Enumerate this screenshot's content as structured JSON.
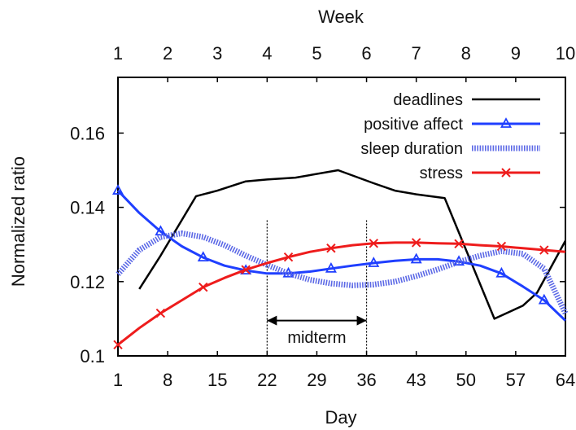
{
  "chart_data": {
    "type": "line",
    "title": "",
    "xlabel": "Day",
    "ylabel": "Normalized ratio",
    "x2label": "Week",
    "xlim": [
      1,
      64
    ],
    "ylim": [
      0.1,
      0.175
    ],
    "x_ticks": [
      1,
      8,
      15,
      22,
      29,
      36,
      43,
      50,
      57,
      64
    ],
    "y_ticks": [
      0.1,
      0.12,
      0.14,
      0.16
    ],
    "y_tick_labels": [
      "0.1",
      "0.12",
      "0.14",
      "0.16"
    ],
    "week_ticks": [
      "1",
      "2",
      "3",
      "4",
      "5",
      "6",
      "7",
      "8",
      "9",
      "10"
    ],
    "grid": false,
    "legend_position": "top-right",
    "series": [
      {
        "name": "deadlines",
        "color": "#000000",
        "style": "solid",
        "marker": "none",
        "x": [
          4,
          7,
          12,
          15,
          19,
          22,
          26,
          32,
          37,
          40,
          43,
          47,
          54,
          58,
          60,
          64
        ],
        "y": [
          0.118,
          0.127,
          0.143,
          0.1445,
          0.147,
          0.1475,
          0.148,
          0.15,
          0.1465,
          0.1445,
          0.1435,
          0.1425,
          0.11,
          0.1135,
          0.117,
          0.131
        ]
      },
      {
        "name": "positive affect",
        "color": "#1f3fff",
        "style": "solid",
        "marker": "triangle",
        "x": [
          1,
          4,
          7,
          10,
          13,
          16,
          19,
          22,
          25,
          28,
          31,
          34,
          37,
          40,
          43,
          46,
          49,
          52,
          55,
          58,
          61,
          64
        ],
        "y": [
          0.1445,
          0.1385,
          0.1335,
          0.1295,
          0.1265,
          0.1243,
          0.123,
          0.1222,
          0.1222,
          0.1227,
          0.1235,
          0.1243,
          0.125,
          0.1256,
          0.126,
          0.126,
          0.1254,
          0.1243,
          0.1222,
          0.1187,
          0.115,
          0.1095
        ]
      },
      {
        "name": "sleep duration",
        "color": "#5b68e6",
        "style": "dotted",
        "marker": "none",
        "x": [
          1,
          4,
          7,
          10,
          13,
          16,
          19,
          22,
          25,
          28,
          31,
          34,
          37,
          40,
          43,
          46,
          49,
          52,
          55,
          58,
          61,
          64
        ],
        "y": [
          0.122,
          0.1285,
          0.132,
          0.133,
          0.132,
          0.1298,
          0.127,
          0.1245,
          0.1222,
          0.1205,
          0.1195,
          0.119,
          0.1192,
          0.12,
          0.1215,
          0.1233,
          0.1253,
          0.127,
          0.1282,
          0.1275,
          0.1235,
          0.1115
        ]
      },
      {
        "name": "stress",
        "color": "#ee1c1c",
        "style": "solid",
        "marker": "cross",
        "x": [
          1,
          4,
          7,
          10,
          13,
          16,
          19,
          22,
          25,
          28,
          31,
          34,
          37,
          40,
          43,
          46,
          49,
          52,
          55,
          58,
          61,
          64
        ],
        "y": [
          0.103,
          0.1075,
          0.1115,
          0.115,
          0.1185,
          0.121,
          0.1232,
          0.125,
          0.1266,
          0.128,
          0.129,
          0.1298,
          0.1303,
          0.1305,
          0.1305,
          0.1303,
          0.1302,
          0.1298,
          0.1295,
          0.129,
          0.1285,
          0.128
        ]
      }
    ],
    "annotations": [
      {
        "type": "span",
        "label": "midterm",
        "x_start": 22,
        "x_end": 36,
        "y_label": 0.1055,
        "y_arrow": 0.1095,
        "y_top": 0.1365,
        "y_bottom": 0.1
      }
    ]
  }
}
